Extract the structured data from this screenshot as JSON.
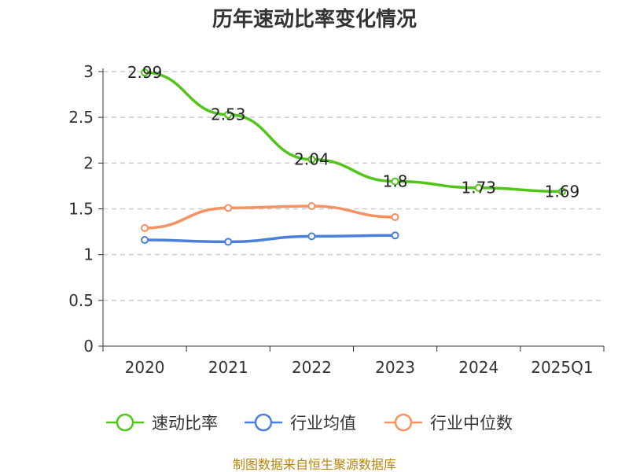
{
  "chart_data": {
    "type": "line",
    "title": "历年速动比率变化情况",
    "categories": [
      "2020",
      "2021",
      "2022",
      "2023",
      "2024",
      "2025Q1"
    ],
    "y_ticks": [
      "0",
      "0.5",
      "1",
      "1.5",
      "2",
      "2.5",
      "3"
    ],
    "ylim": [
      0,
      3
    ],
    "grid": "horizontal dashed",
    "legend_position": "bottom",
    "series": [
      {
        "name": "速动比率",
        "color": "#52c41a",
        "values": [
          2.99,
          2.53,
          2.04,
          1.8,
          1.73,
          1.69
        ],
        "labels": [
          "2.99",
          "2.53",
          "2.04",
          "1.8",
          "1.73",
          "1.69"
        ]
      },
      {
        "name": "行业均值",
        "color": "#4a7fdb",
        "values": [
          1.16,
          1.14,
          1.2,
          1.21,
          null,
          null
        ]
      },
      {
        "name": "行业中位数",
        "color": "#f59162",
        "values": [
          1.29,
          1.51,
          1.53,
          1.41,
          null,
          null
        ]
      }
    ]
  },
  "footer": {
    "source": "制图数据来自恒生聚源数据库"
  }
}
